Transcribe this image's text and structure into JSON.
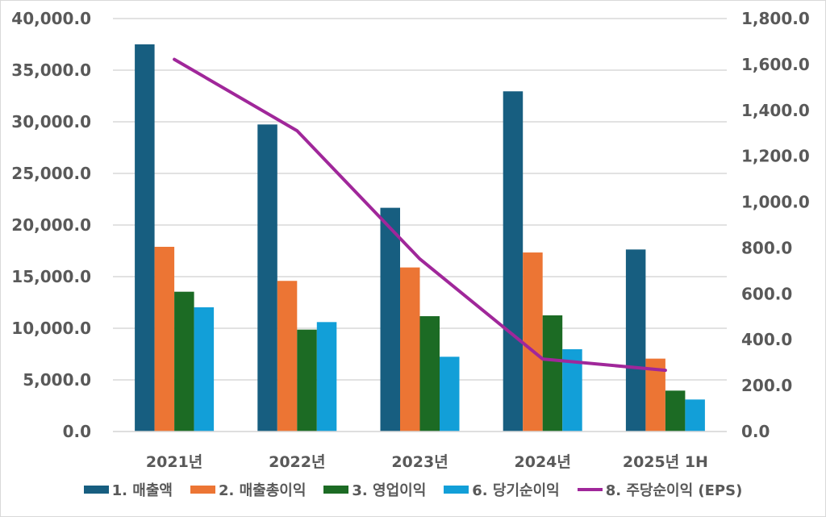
{
  "chart_data": {
    "type": "bar",
    "combo": "bar + line (secondary axis)",
    "title": "",
    "xlabel": "",
    "ylabel": "",
    "categories": [
      "2021년",
      "2022년",
      "2023년",
      "2024년",
      "2025년 1H"
    ],
    "series": [
      {
        "name": "1. 매출액",
        "type": "bar",
        "axis": "left",
        "color": "#175e80",
        "values": [
          37500,
          29740,
          21670,
          32950,
          17630
        ]
      },
      {
        "name": "2. 매출총이익",
        "type": "bar",
        "axis": "left",
        "color": "#ec7534",
        "values": [
          17890,
          14590,
          15890,
          17340,
          7060
        ]
      },
      {
        "name": "3. 영업이익",
        "type": "bar",
        "axis": "left",
        "color": "#1c6b24",
        "values": [
          13540,
          9870,
          11170,
          11250,
          3960
        ]
      },
      {
        "name": "6. 당기순이익",
        "type": "bar",
        "axis": "left",
        "color": "#129fd8",
        "values": [
          12030,
          10600,
          7240,
          7970,
          3100
        ]
      },
      {
        "name": "8. 주당순이익 (EPS)",
        "type": "line",
        "axis": "right",
        "color": "#a0279a",
        "values": [
          1622,
          1311,
          752,
          316,
          267
        ]
      }
    ],
    "ylim": [
      0,
      40000
    ],
    "y2lim": [
      0,
      1800
    ],
    "y_ticks": [
      "0.0",
      "5,000.0",
      "10,000.0",
      "15,000.0",
      "20,000.0",
      "25,000.0",
      "30,000.0",
      "35,000.0",
      "40,000.0"
    ],
    "y2_ticks": [
      "0.0",
      "200.0",
      "400.0",
      "600.0",
      "800.0",
      "1,000.0",
      "1,200.0",
      "1,400.0",
      "1,600.0",
      "1,800.0"
    ],
    "grid": true,
    "legend_position": "bottom"
  },
  "legend": [
    {
      "label": "1. 매출액",
      "color": "#175e80",
      "kind": "bar"
    },
    {
      "label": "2. 매출총이익",
      "color": "#ec7534",
      "kind": "bar"
    },
    {
      "label": "3. 영업이익",
      "color": "#1c6b24",
      "kind": "bar"
    },
    {
      "label": "6. 당기순이익",
      "color": "#129fd8",
      "kind": "bar"
    },
    {
      "label": "8. 주당순이익 (EPS)",
      "color": "#a0279a",
      "kind": "line"
    }
  ]
}
